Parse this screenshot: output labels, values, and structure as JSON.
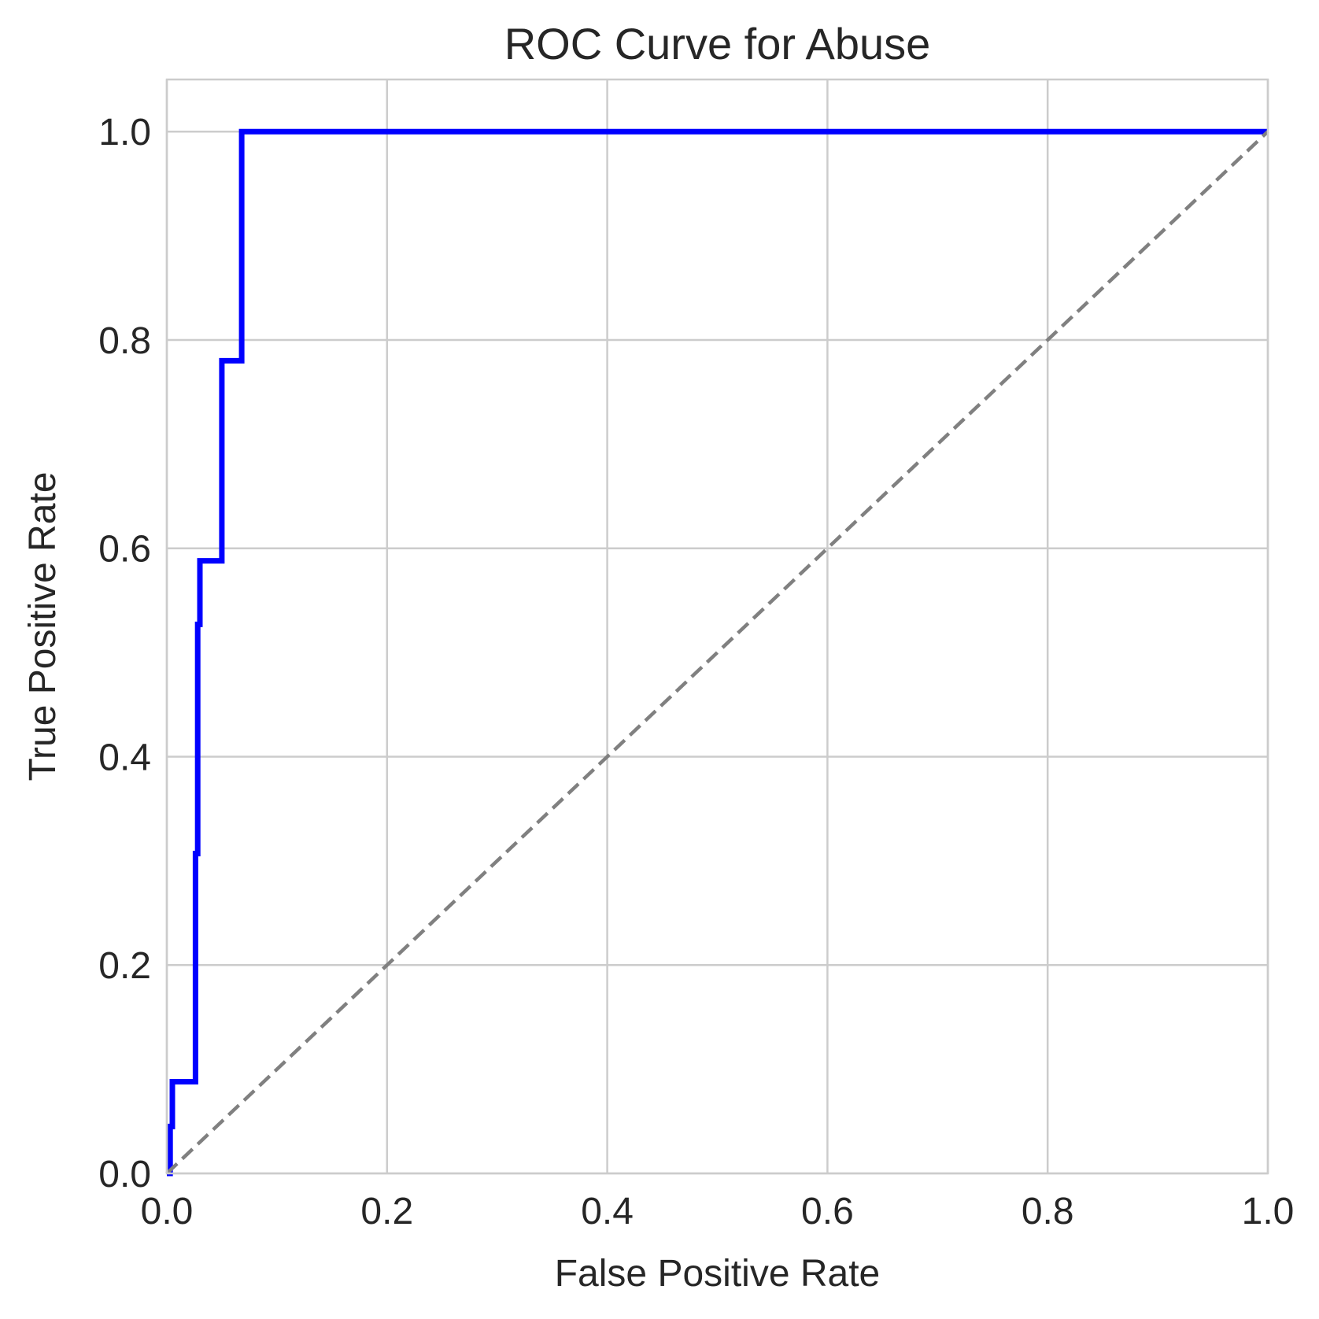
{
  "chart_data": {
    "type": "line",
    "title": "ROC Curve for Abuse",
    "xlabel": "False Positive Rate",
    "ylabel": "True Positive Rate",
    "xlim": [
      0.0,
      1.0
    ],
    "ylim": [
      0.0,
      1.05
    ],
    "xticks": [
      0.0,
      0.2,
      0.4,
      0.6,
      0.8,
      1.0
    ],
    "yticks": [
      0.0,
      0.2,
      0.4,
      0.6,
      0.8,
      1.0
    ],
    "xtick_labels": [
      "0.0",
      "0.2",
      "0.4",
      "0.6",
      "0.8",
      "1.0"
    ],
    "ytick_labels": [
      "0.0",
      "0.2",
      "0.4",
      "0.6",
      "0.8",
      "1.0"
    ],
    "grid": true,
    "series": [
      {
        "style": "solid",
        "color": "#0000ff",
        "x": [
          0.0,
          0.003,
          0.003,
          0.005,
          0.005,
          0.026,
          0.026,
          0.028,
          0.028,
          0.03,
          0.03,
          0.036,
          0.036,
          0.05,
          0.05,
          0.068,
          0.068,
          1.0
        ],
        "y": [
          0.0,
          0.0,
          0.045,
          0.045,
          0.088,
          0.088,
          0.307,
          0.307,
          0.527,
          0.527,
          0.588,
          0.588,
          0.588,
          0.588,
          0.78,
          0.78,
          1.0,
          1.0
        ]
      },
      {
        "style": "dashed",
        "color": "#808080",
        "x": [
          0.0,
          1.0
        ],
        "y": [
          0.0,
          1.0
        ]
      }
    ]
  }
}
